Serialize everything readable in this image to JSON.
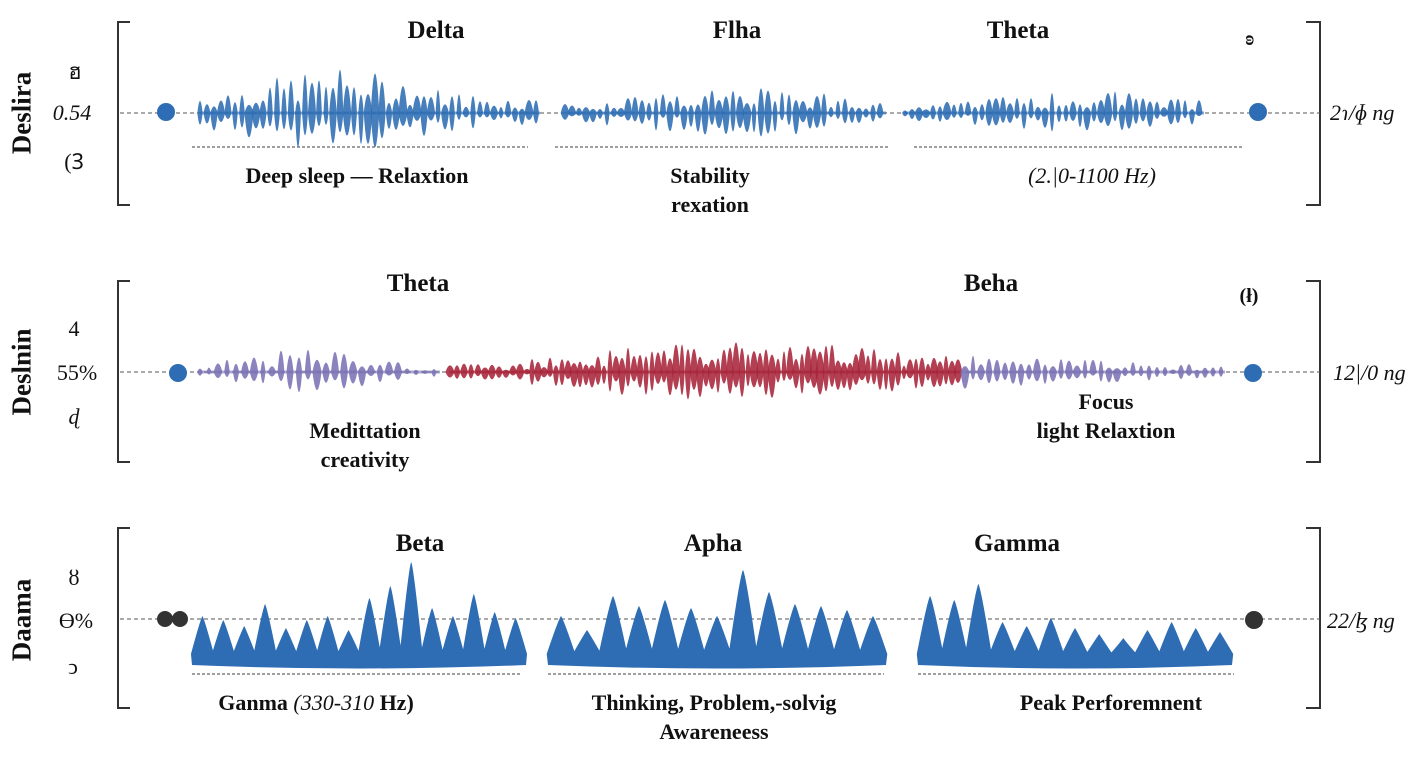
{
  "colors": {
    "blue": "#2e6db4",
    "purple": "#7a72b4",
    "red": "#a8243a",
    "dark": "#333333",
    "line": "#555555"
  },
  "rows": [
    {
      "side_label": "Deslira",
      "ticks": [
        "ฮ",
        "0.54",
        "(Ꝫ"
      ],
      "right_value": "2ɿ/ɸ ng",
      "corner_mark": "ʚ",
      "bands": [
        {
          "title": "Delta",
          "color": "blue"
        },
        {
          "title": "Flha",
          "color": "blue"
        },
        {
          "title": "Theta",
          "color": "blue"
        }
      ],
      "descriptions": [
        {
          "text": "Deep sleep — Relaxtion",
          "italic": false
        },
        {
          "line1": "Stability",
          "line2": "rexation"
        },
        {
          "text": "(2.|0-1100 Hz)",
          "italic": true
        }
      ]
    },
    {
      "side_label": "Deslnin",
      "ticks": [
        "4",
        "55%",
        "ɖ"
      ],
      "right_value": "12|/0 ng",
      "corner_mark": "(ł)",
      "bands": [
        {
          "title": "Theta",
          "color": "purple"
        },
        {
          "title": "Beha",
          "color": "red"
        }
      ],
      "descriptions": [
        {
          "line1": "Medittation",
          "line2": "creativity"
        },
        {
          "line1": "Focus",
          "line2": "light Relaxtion"
        }
      ]
    },
    {
      "side_label": "Daama",
      "ticks": [
        "ȣ",
        "Ɵ%",
        "ↄ"
      ],
      "right_value": "22/ɮ ng",
      "bands": [
        {
          "title": "Beta",
          "color": "blue"
        },
        {
          "title": "Apha",
          "color": "blue"
        },
        {
          "title": "Gamma",
          "color": "blue"
        }
      ],
      "descriptions": [
        {
          "text": "Ganma",
          "italic_part": "(330-310",
          "suffix": "Hz)"
        },
        {
          "line1": "Thinking, Problem,-solvig",
          "line2": "Awareneess"
        },
        {
          "text": "Peak Perforemnent",
          "italic": false
        }
      ]
    }
  ]
}
